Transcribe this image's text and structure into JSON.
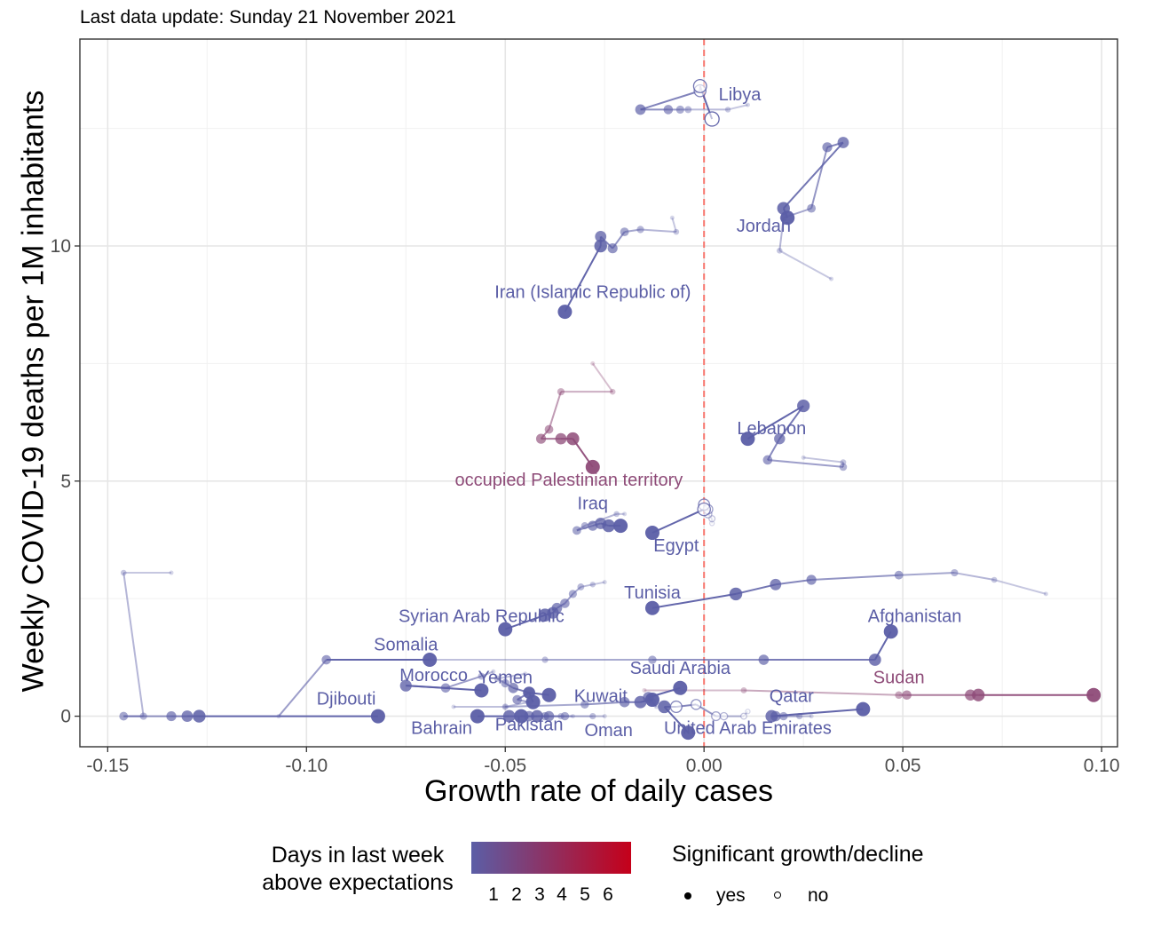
{
  "chart_data": {
    "type": "scatter",
    "title": "Last data update: Sunday 21 November 2021",
    "xlabel": "Growth rate of daily cases",
    "ylabel": "Weekly COVID-19 deaths per 1M inhabitants",
    "xlim": [
      -0.157,
      0.104
    ],
    "ylim": [
      -0.65,
      14.4
    ],
    "x_ticks": [
      -0.15,
      -0.1,
      -0.05,
      0.0,
      0.05,
      0.1
    ],
    "x_tick_labels": [
      "-0.15",
      "-0.10",
      "-0.05",
      "0.00",
      "0.05",
      "0.10"
    ],
    "y_ticks": [
      0,
      5,
      10
    ],
    "y_tick_labels": [
      "0",
      "5",
      "10"
    ],
    "reference_line": {
      "x": 0,
      "color": "#f8766d",
      "style": "dashed"
    },
    "grid": true,
    "legend": {
      "color_title": "Days in last week above expectations",
      "color_ticks": [
        "1",
        "2",
        "3",
        "4",
        "5",
        "6"
      ],
      "color_low": "#5b5ea6",
      "color_high": "#c5001a",
      "shape_title": "Significant growth/decline",
      "shape_items": [
        "yes",
        "no"
      ],
      "position": "bottom"
    },
    "series": [
      {
        "name": "Libya",
        "color": "#5b5ea6",
        "label_pos": [
          0.009,
          13.1
        ],
        "points": [
          [
            0.011,
            13.0
          ],
          [
            0.006,
            12.9
          ],
          [
            -0.004,
            12.9
          ],
          [
            -0.006,
            12.9
          ],
          [
            -0.009,
            12.9
          ],
          [
            -0.016,
            12.9
          ],
          [
            -0.001,
            13.3
          ],
          [
            -0.001,
            13.4
          ],
          [
            0.002,
            12.7
          ]
        ],
        "open_from": 6
      },
      {
        "name": "Jordan",
        "color": "#5b5ea6",
        "label_pos": [
          0.015,
          10.3
        ],
        "points": [
          [
            0.032,
            9.3
          ],
          [
            0.019,
            9.9
          ],
          [
            0.02,
            10.6
          ],
          [
            0.027,
            10.8
          ],
          [
            0.031,
            12.1
          ],
          [
            0.035,
            12.2
          ],
          [
            0.02,
            10.8
          ],
          [
            0.021,
            10.6
          ]
        ]
      },
      {
        "name": "Iran (Islamic Republic of)",
        "color": "#5b5ea6",
        "label_pos": [
          -0.028,
          8.9
        ],
        "points": [
          [
            -0.008,
            10.6
          ],
          [
            -0.007,
            10.3
          ],
          [
            -0.016,
            10.35
          ],
          [
            -0.02,
            10.3
          ],
          [
            -0.023,
            9.95
          ],
          [
            -0.026,
            10.2
          ],
          [
            -0.026,
            10.0
          ],
          [
            -0.035,
            8.6
          ]
        ]
      },
      {
        "name": "occupied Palestinian territory",
        "color": "#8e4b78",
        "label_pos": [
          -0.034,
          4.9
        ],
        "points": [
          [
            -0.028,
            7.5
          ],
          [
            -0.023,
            6.9
          ],
          [
            -0.036,
            6.9
          ],
          [
            -0.039,
            6.1
          ],
          [
            -0.041,
            5.9
          ],
          [
            -0.036,
            5.9
          ],
          [
            -0.033,
            5.9
          ],
          [
            -0.028,
            5.3
          ]
        ]
      },
      {
        "name": "Lebanon",
        "color": "#5b5ea6",
        "label_pos": [
          0.017,
          6.0
        ],
        "points": [
          [
            0.025,
            5.5
          ],
          [
            0.035,
            5.4
          ],
          [
            0.035,
            5.3
          ],
          [
            0.016,
            5.45
          ],
          [
            0.019,
            5.9
          ],
          [
            0.025,
            6.6
          ],
          [
            0.011,
            5.9
          ]
        ]
      },
      {
        "name": "Egypt",
        "color": "#5b5ea6",
        "label_pos": [
          -0.007,
          3.5
        ],
        "points": [
          [
            0.002,
            4.1
          ],
          [
            0.002,
            4.2
          ],
          [
            0.001,
            4.3
          ],
          [
            0.001,
            4.4
          ],
          [
            0.0,
            4.5
          ],
          [
            0.0,
            4.4
          ],
          [
            -0.013,
            3.9
          ]
        ],
        "open_from": 0,
        "open_to": 5
      },
      {
        "name": "Iraq",
        "color": "#5b5ea6",
        "label_pos": [
          -0.028,
          4.4
        ],
        "points": [
          [
            -0.02,
            4.3
          ],
          [
            -0.022,
            4.3
          ],
          [
            -0.03,
            4.05
          ],
          [
            -0.032,
            3.95
          ],
          [
            -0.028,
            4.05
          ],
          [
            -0.026,
            4.1
          ],
          [
            -0.024,
            4.05
          ],
          [
            -0.021,
            4.05
          ]
        ]
      },
      {
        "name": "Tunisia",
        "color": "#5b5ea6",
        "label_pos": [
          -0.013,
          2.5
        ],
        "points": [
          [
            0.086,
            2.6
          ],
          [
            0.073,
            2.9
          ],
          [
            0.063,
            3.05
          ],
          [
            0.049,
            3.0
          ],
          [
            0.027,
            2.9
          ],
          [
            0.018,
            2.8
          ],
          [
            0.008,
            2.6
          ],
          [
            -0.013,
            2.3
          ]
        ]
      },
      {
        "name": "Syrian Arab Republic",
        "color": "#5b5ea6",
        "label_pos": [
          -0.056,
          2.0
        ],
        "points": [
          [
            -0.025,
            2.85
          ],
          [
            -0.028,
            2.8
          ],
          [
            -0.031,
            2.75
          ],
          [
            -0.033,
            2.6
          ],
          [
            -0.035,
            2.4
          ],
          [
            -0.037,
            2.3
          ],
          [
            -0.038,
            2.2
          ],
          [
            -0.04,
            2.15
          ],
          [
            -0.05,
            1.85
          ]
        ]
      },
      {
        "name": "Afghanistan",
        "color": "#5b5ea6",
        "label_pos": [
          0.053,
          2.0
        ],
        "points": [
          [
            -0.069,
            1.2
          ],
          [
            -0.04,
            1.2
          ],
          [
            -0.013,
            1.2
          ],
          [
            0.015,
            1.2
          ],
          [
            0.043,
            1.2
          ],
          [
            0.047,
            1.8
          ]
        ]
      },
      {
        "name": "Somalia",
        "color": "#5b5ea6",
        "label_pos": [
          -0.075,
          1.4
        ],
        "points": [
          [
            -0.107,
            0.0
          ],
          [
            -0.095,
            1.2
          ],
          [
            -0.069,
            1.2
          ]
        ]
      },
      {
        "name": "Sudan",
        "color": "#8e4b78",
        "label_pos": [
          0.049,
          0.7
        ],
        "points": [
          [
            -0.015,
            0.55
          ],
          [
            0.01,
            0.55
          ],
          [
            0.049,
            0.45
          ],
          [
            0.051,
            0.45
          ],
          [
            0.067,
            0.45
          ],
          [
            0.069,
            0.45
          ],
          [
            0.098,
            0.45
          ]
        ]
      },
      {
        "name": "Djibouti",
        "color": "#5b5ea6",
        "label_pos": [
          -0.09,
          0.25
        ],
        "points": [
          [
            -0.134,
            3.05
          ],
          [
            -0.146,
            3.05
          ],
          [
            -0.141,
            0.0
          ],
          [
            -0.146,
            0.0
          ],
          [
            -0.134,
            0.0
          ],
          [
            -0.13,
            0.0
          ],
          [
            -0.127,
            0.0
          ],
          [
            -0.082,
            0.0
          ]
        ]
      },
      {
        "name": "Morocco",
        "color": "#5b5ea6",
        "label_pos": [
          -0.068,
          0.75
        ],
        "points": [
          [
            -0.053,
            0.95
          ],
          [
            -0.056,
            0.85
          ],
          [
            -0.065,
            0.6
          ],
          [
            -0.075,
            0.65
          ],
          [
            -0.056,
            0.55
          ]
        ]
      },
      {
        "name": "Yemen",
        "color": "#5b5ea6",
        "label_pos": [
          -0.05,
          0.7
        ],
        "points": [
          [
            -0.045,
            0.9
          ],
          [
            -0.052,
            0.8
          ],
          [
            -0.05,
            0.7
          ],
          [
            -0.048,
            0.6
          ],
          [
            -0.044,
            0.5
          ],
          [
            -0.039,
            0.45
          ]
        ]
      },
      {
        "name": "Saudi Arabia",
        "color": "#5b5ea6",
        "label_pos": [
          -0.006,
          0.9
        ],
        "points": [
          [
            -0.012,
            0.2
          ],
          [
            -0.013,
            0.3
          ],
          [
            -0.014,
            0.4
          ],
          [
            -0.006,
            0.6
          ]
        ]
      },
      {
        "name": "Kuwait",
        "color": "#5b5ea6",
        "label_pos": [
          -0.026,
          0.3
        ],
        "points": [
          [
            -0.063,
            0.2
          ],
          [
            -0.05,
            0.2
          ],
          [
            -0.03,
            0.25
          ],
          [
            -0.02,
            0.3
          ],
          [
            -0.016,
            0.3
          ],
          [
            -0.013,
            0.35
          ]
        ]
      },
      {
        "name": "Bahrain",
        "color": "#5b5ea6",
        "label_pos": [
          -0.066,
          -0.38
        ],
        "points": [
          [
            -0.05,
            0.2
          ],
          [
            -0.044,
            0.3
          ],
          [
            -0.047,
            0.35
          ],
          [
            -0.044,
            0.5
          ],
          [
            -0.043,
            0.3
          ]
        ]
      },
      {
        "name": "Pakistan",
        "color": "#5b5ea6",
        "label_pos": [
          -0.044,
          -0.3
        ],
        "points": [
          [
            -0.033,
            0.0
          ],
          [
            -0.036,
            0.0
          ],
          [
            -0.04,
            0.0
          ],
          [
            -0.044,
            0.0
          ],
          [
            -0.049,
            0.0
          ],
          [
            -0.057,
            0.0
          ]
        ]
      },
      {
        "name": "Oman",
        "color": "#5b5ea6",
        "label_pos": [
          -0.024,
          -0.42
        ],
        "points": [
          [
            -0.025,
            0.0
          ],
          [
            -0.028,
            0.0
          ],
          [
            -0.035,
            0.0
          ],
          [
            -0.039,
            0.0
          ],
          [
            -0.042,
            0.0
          ],
          [
            -0.046,
            0.0
          ]
        ]
      },
      {
        "name": "Qatar",
        "color": "#5b5ea6",
        "label_pos": [
          0.022,
          0.3
        ],
        "points": [
          [
            0.027,
            0.0
          ],
          [
            0.024,
            0.0
          ],
          [
            0.02,
            0.0
          ],
          [
            0.018,
            0.0
          ],
          [
            0.017,
            0.0
          ],
          [
            0.04,
            0.15
          ]
        ]
      },
      {
        "name": "United Arab Emirates",
        "color": "#5b5ea6",
        "label_pos": [
          0.011,
          -0.38
        ],
        "points": [
          [
            0.011,
            0.1
          ],
          [
            0.01,
            0.0
          ],
          [
            0.005,
            0.0
          ],
          [
            0.003,
            0.0
          ],
          [
            -0.002,
            0.25
          ],
          [
            -0.007,
            0.2
          ],
          [
            -0.01,
            0.2
          ],
          [
            -0.004,
            -0.35
          ]
        ],
        "open_from": 0,
        "open_to": 5
      }
    ]
  }
}
